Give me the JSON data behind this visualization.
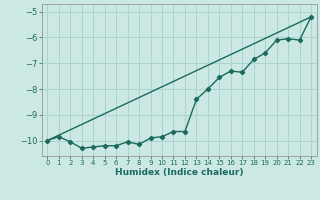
{
  "xlabel": "Humidex (Indice chaleur)",
  "ylabel": "",
  "bg_color": "#cce8e4",
  "grid_color": "#aad4ce",
  "line_color": "#1a6b5a",
  "xlim": [
    -0.5,
    23.5
  ],
  "ylim": [
    -10.6,
    -4.7
  ],
  "yticks": [
    -10,
    -9,
    -8,
    -7,
    -6,
    -5
  ],
  "xticks": [
    0,
    1,
    2,
    3,
    4,
    5,
    6,
    7,
    8,
    9,
    10,
    11,
    12,
    13,
    14,
    15,
    16,
    17,
    18,
    19,
    20,
    21,
    22,
    23
  ],
  "curve1_x": [
    0,
    1,
    2,
    3,
    4,
    5,
    6,
    7,
    8,
    9,
    10,
    11,
    12,
    13,
    14,
    15,
    16,
    17,
    18,
    19,
    20,
    21,
    22,
    23
  ],
  "curve1_y": [
    -10.0,
    -9.85,
    -10.05,
    -10.3,
    -10.25,
    -10.2,
    -10.2,
    -10.05,
    -10.15,
    -9.9,
    -9.85,
    -9.65,
    -9.65,
    -8.4,
    -8.0,
    -7.55,
    -7.3,
    -7.35,
    -6.85,
    -6.6,
    -6.1,
    -6.05,
    -6.1,
    -5.2
  ],
  "curve2_x": [
    0,
    23
  ],
  "curve2_y": [
    -10.0,
    -5.2
  ]
}
